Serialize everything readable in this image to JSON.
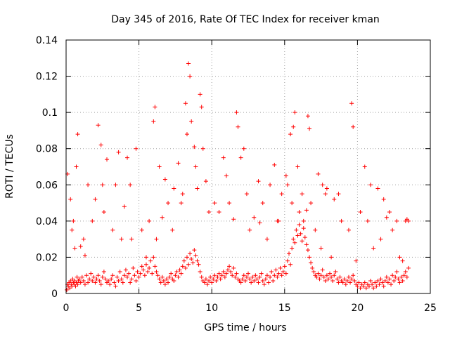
{
  "chart_data": {
    "type": "scatter",
    "title": "Day 345 of 2016, Rate Of TEC Index for receiver kman",
    "xlabel": "GPS time / hours",
    "ylabel": "ROTI / TECUs",
    "xlim": [
      0,
      25
    ],
    "ylim": [
      0,
      0.14
    ],
    "x_ticks": [
      0,
      5,
      10,
      15,
      20,
      25
    ],
    "x_tick_labels": [
      "0",
      "5",
      "10",
      "15",
      "20",
      "25"
    ],
    "y_ticks": [
      0,
      0.02,
      0.04,
      0.06,
      0.08,
      0.1,
      0.12,
      0.14
    ],
    "y_tick_labels": [
      "0",
      "0.02",
      "0.04",
      "0.06",
      "0.08",
      "0.1",
      "0.12",
      "0.14"
    ],
    "grid": true,
    "marker": "plus",
    "color": "#ff0000",
    "x": [
      0.05,
      0.1,
      0.15,
      0.2,
      0.25,
      0.3,
      0.35,
      0.4,
      0.45,
      0.5,
      0.55,
      0.6,
      0.65,
      0.7,
      0.75,
      0.8,
      0.85,
      0.9,
      1.0,
      1.1,
      1.2,
      1.3,
      1.4,
      1.5,
      1.6,
      1.7,
      1.8,
      1.9,
      2.0,
      2.1,
      2.2,
      2.3,
      2.4,
      2.5,
      2.6,
      2.7,
      2.8,
      2.9,
      3.0,
      3.1,
      3.2,
      3.3,
      3.4,
      3.5,
      3.6,
      3.7,
      3.8,
      3.9,
      4.0,
      4.1,
      4.2,
      4.3,
      4.4,
      4.5,
      4.6,
      4.7,
      4.8,
      4.9,
      5.0,
      5.1,
      5.2,
      5.3,
      5.4,
      5.5,
      5.6,
      5.7,
      5.8,
      5.9,
      6.0,
      6.1,
      6.2,
      6.3,
      6.4,
      6.5,
      6.6,
      6.7,
      6.8,
      6.9,
      7.0,
      7.1,
      7.2,
      7.3,
      7.4,
      7.5,
      7.6,
      7.7,
      7.8,
      7.9,
      8.0,
      8.1,
      8.2,
      8.3,
      8.4,
      8.5,
      8.6,
      8.7,
      8.8,
      8.9,
      9.0,
      9.1,
      9.2,
      9.3,
      9.4,
      9.5,
      9.6,
      9.7,
      9.8,
      9.9,
      10.0,
      10.1,
      10.2,
      10.3,
      10.4,
      10.5,
      10.6,
      10.7,
      10.8,
      10.9,
      11.0,
      11.1,
      11.2,
      11.3,
      11.4,
      11.5,
      11.6,
      11.7,
      11.8,
      11.9,
      12.0,
      12.1,
      12.2,
      12.3,
      12.4,
      12.5,
      12.6,
      12.7,
      12.8,
      12.9,
      13.0,
      13.1,
      13.2,
      13.3,
      13.4,
      13.5,
      13.6,
      13.7,
      13.8,
      13.9,
      14.0,
      14.1,
      14.2,
      14.3,
      14.4,
      14.5,
      14.6,
      14.7,
      14.8,
      14.9,
      15.0,
      15.1,
      15.2,
      15.3,
      15.4,
      15.5,
      15.6,
      15.7,
      15.8,
      15.9,
      16.0,
      16.1,
      16.2,
      16.3,
      16.4,
      16.5,
      16.6,
      16.7,
      16.8,
      16.9,
      17.0,
      17.1,
      17.2,
      17.3,
      17.4,
      17.5,
      17.6,
      17.7,
      17.8,
      17.9,
      18.0,
      18.1,
      18.2,
      18.3,
      18.4,
      18.5,
      18.6,
      18.7,
      18.8,
      18.9,
      19.0,
      19.1,
      19.2,
      19.3,
      19.4,
      19.5,
      19.6,
      19.7,
      19.8,
      19.9,
      20.0,
      20.1,
      20.2,
      20.3,
      20.4,
      20.5,
      20.6,
      20.7,
      20.8,
      20.9,
      21.0,
      21.1,
      21.2,
      21.3,
      21.4,
      21.5,
      21.6,
      21.7,
      21.8,
      21.9,
      22.0,
      22.1,
      22.2,
      22.3,
      22.4,
      22.5,
      22.6,
      22.7,
      22.8,
      22.9,
      23.0,
      23.1,
      23.2,
      23.3,
      23.4,
      23.5,
      0.1,
      0.3,
      0.5,
      0.7,
      0.8,
      1.2,
      1.5,
      2.2,
      2.4,
      2.5,
      2.8,
      3.4,
      3.6,
      4.2,
      4.5,
      4.8,
      5.5,
      6.0,
      6.1,
      6.4,
      6.8,
      7.4,
      7.7,
      8.2,
      8.3,
      8.4,
      8.5,
      8.6,
      8.8,
      9.2,
      9.3,
      9.4,
      9.6,
      10.8,
      11.0,
      11.7,
      11.8,
      12.0,
      12.2,
      12.4,
      13.2,
      13.5,
      14.0,
      14.3,
      14.5,
      15.1,
      15.4,
      15.6,
      15.7,
      15.9,
      16.2,
      16.6,
      16.7,
      17.3,
      17.6,
      17.9,
      18.4,
      18.7,
      19.6,
      19.7,
      20.5,
      20.9,
      21.4,
      21.8,
      22.2,
      22.7,
      23.3,
      23.4,
      23.5,
      0.4,
      0.6,
      1.0,
      1.3,
      1.8,
      2.0,
      2.6,
      3.2,
      3.8,
      4.0,
      4.4,
      5.2,
      5.7,
      6.2,
      6.6,
      7.0,
      7.3,
      7.9,
      8.0,
      8.9,
      9.0,
      9.8,
      10.2,
      10.5,
      11.2,
      11.5,
      12.6,
      12.9,
      13.3,
      13.8,
      14.6,
      14.8,
      15.2,
      15.5,
      16.0,
      16.3,
      16.5,
      16.8,
      17.1,
      17.5,
      17.8,
      18.2,
      18.9,
      19.4,
      19.9,
      20.2,
      20.7,
      21.1,
      21.6,
      22.0,
      22.4,
      22.9,
      23.1
    ],
    "y": [
      0.002,
      0.005,
      0.004,
      0.006,
      0.003,
      0.007,
      0.005,
      0.004,
      0.008,
      0.006,
      0.005,
      0.007,
      0.004,
      0.006,
      0.009,
      0.005,
      0.007,
      0.008,
      0.006,
      0.009,
      0.007,
      0.005,
      0.01,
      0.006,
      0.008,
      0.011,
      0.007,
      0.009,
      0.006,
      0.008,
      0.01,
      0.007,
      0.005,
      0.009,
      0.012,
      0.008,
      0.006,
      0.007,
      0.005,
      0.008,
      0.01,
      0.006,
      0.004,
      0.009,
      0.007,
      0.012,
      0.008,
      0.006,
      0.01,
      0.013,
      0.009,
      0.011,
      0.006,
      0.008,
      0.014,
      0.01,
      0.007,
      0.012,
      0.009,
      0.011,
      0.015,
      0.013,
      0.01,
      0.016,
      0.012,
      0.014,
      0.018,
      0.011,
      0.02,
      0.015,
      0.012,
      0.01,
      0.008,
      0.006,
      0.009,
      0.007,
      0.005,
      0.008,
      0.006,
      0.009,
      0.011,
      0.008,
      0.007,
      0.01,
      0.012,
      0.009,
      0.013,
      0.011,
      0.015,
      0.018,
      0.014,
      0.02,
      0.016,
      0.022,
      0.019,
      0.017,
      0.024,
      0.021,
      0.018,
      0.016,
      0.012,
      0.009,
      0.007,
      0.006,
      0.008,
      0.005,
      0.007,
      0.009,
      0.006,
      0.008,
      0.01,
      0.007,
      0.009,
      0.011,
      0.008,
      0.01,
      0.012,
      0.009,
      0.011,
      0.013,
      0.015,
      0.012,
      0.01,
      0.014,
      0.009,
      0.011,
      0.008,
      0.007,
      0.006,
      0.008,
      0.01,
      0.007,
      0.009,
      0.011,
      0.008,
      0.006,
      0.009,
      0.007,
      0.01,
      0.008,
      0.006,
      0.009,
      0.011,
      0.007,
      0.005,
      0.008,
      0.01,
      0.006,
      0.009,
      0.012,
      0.007,
      0.01,
      0.013,
      0.009,
      0.011,
      0.014,
      0.01,
      0.012,
      0.015,
      0.011,
      0.018,
      0.022,
      0.016,
      0.025,
      0.03,
      0.028,
      0.035,
      0.032,
      0.038,
      0.033,
      0.029,
      0.036,
      0.031,
      0.027,
      0.024,
      0.02,
      0.017,
      0.014,
      0.012,
      0.01,
      0.009,
      0.011,
      0.008,
      0.01,
      0.013,
      0.009,
      0.007,
      0.01,
      0.008,
      0.011,
      0.009,
      0.007,
      0.01,
      0.012,
      0.008,
      0.006,
      0.009,
      0.007,
      0.006,
      0.008,
      0.005,
      0.007,
      0.009,
      0.006,
      0.008,
      0.01,
      0.007,
      0.005,
      0.004,
      0.006,
      0.003,
      0.005,
      0.004,
      0.006,
      0.003,
      0.005,
      0.004,
      0.007,
      0.005,
      0.003,
      0.006,
      0.004,
      0.007,
      0.005,
      0.008,
      0.006,
      0.004,
      0.007,
      0.009,
      0.006,
      0.008,
      0.005,
      0.01,
      0.007,
      0.009,
      0.012,
      0.008,
      0.006,
      0.009,
      0.007,
      0.01,
      0.012,
      0.009,
      0.014,
      0.066,
      0.052,
      0.04,
      0.07,
      0.088,
      0.03,
      0.06,
      0.093,
      0.082,
      0.06,
      0.074,
      0.06,
      0.078,
      0.075,
      0.03,
      0.08,
      0.02,
      0.095,
      0.103,
      0.07,
      0.063,
      0.058,
      0.072,
      0.105,
      0.088,
      0.127,
      0.12,
      0.095,
      0.081,
      0.11,
      0.103,
      0.08,
      0.062,
      0.075,
      0.065,
      0.1,
      0.092,
      0.075,
      0.08,
      0.055,
      0.062,
      0.05,
      0.06,
      0.071,
      0.04,
      0.065,
      0.088,
      0.092,
      0.1,
      0.07,
      0.055,
      0.098,
      0.091,
      0.066,
      0.06,
      0.058,
      0.052,
      0.055,
      0.105,
      0.092,
      0.07,
      0.06,
      0.058,
      0.052,
      0.045,
      0.04,
      0.04,
      0.041,
      0.04,
      0.035,
      0.025,
      0.026,
      0.021,
      0.04,
      0.052,
      0.045,
      0.035,
      0.03,
      0.048,
      0.06,
      0.035,
      0.04,
      0.03,
      0.042,
      0.05,
      0.035,
      0.05,
      0.055,
      0.07,
      0.058,
      0.045,
      0.05,
      0.045,
      0.05,
      0.041,
      0.035,
      0.042,
      0.039,
      0.03,
      0.04,
      0.055,
      0.06,
      0.05,
      0.045,
      0.04,
      0.046,
      0.05,
      0.035,
      0.025,
      0.055,
      0.02,
      0.04,
      0.035,
      0.018,
      0.045,
      0.04,
      0.025,
      0.03,
      0.042,
      0.035,
      0.02,
      0.018
    ]
  }
}
